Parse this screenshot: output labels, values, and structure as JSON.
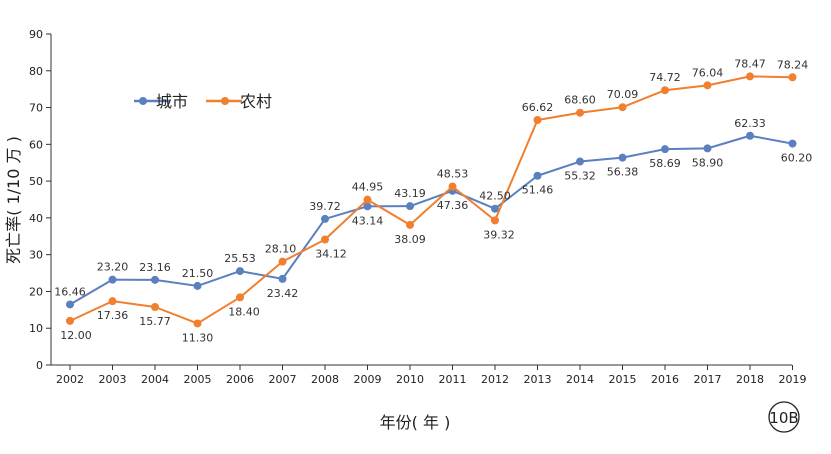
{
  "chart_data": {
    "type": "line",
    "xlabel": "年份( 年 )",
    "ylabel": "死亡率( 1/10 万 )",
    "ylim": [
      0,
      90
    ],
    "yticks": [
      0,
      10,
      20,
      30,
      40,
      50,
      60,
      70,
      80,
      90
    ],
    "grid": false,
    "legend_position": "upper-left",
    "categories": [
      "2002",
      "2003",
      "2004",
      "2005",
      "2006",
      "2007",
      "2008",
      "2009",
      "2010",
      "2011",
      "2012",
      "2013",
      "2014",
      "2015",
      "2016",
      "2017",
      "2018",
      "2019"
    ],
    "series": [
      {
        "name": "城市",
        "color": "#5b7fbf",
        "values": [
          16.46,
          23.2,
          23.16,
          21.5,
          25.53,
          23.42,
          39.72,
          43.14,
          43.19,
          47.36,
          42.5,
          51.46,
          55.32,
          56.38,
          58.69,
          58.9,
          62.33,
          60.2
        ],
        "labels": [
          "16.46",
          "23.20",
          "23.16",
          "21.50",
          "25.53",
          "23.42",
          "39.72",
          "43.14",
          "43.19",
          "47.36",
          "42.50",
          "51.46",
          "55.32",
          "56.38",
          "58.69",
          "58.90",
          "62.33",
          "60.20"
        ]
      },
      {
        "name": "农村",
        "color": "#f07f2e",
        "values": [
          12.0,
          17.36,
          15.77,
          11.3,
          18.4,
          28.1,
          34.12,
          44.95,
          38.09,
          48.53,
          39.32,
          66.62,
          68.6,
          70.09,
          74.72,
          76.04,
          78.47,
          78.24
        ],
        "labels": [
          "12.00",
          "17.36",
          "15.77",
          "11.30",
          "18.40",
          "28.10",
          "34.12",
          "44.95",
          "38.09",
          "48.53",
          "39.32",
          "66.62",
          "68.60",
          "70.09",
          "74.72",
          "76.04",
          "78.47",
          "78.24"
        ]
      }
    ]
  },
  "badge": "10B"
}
